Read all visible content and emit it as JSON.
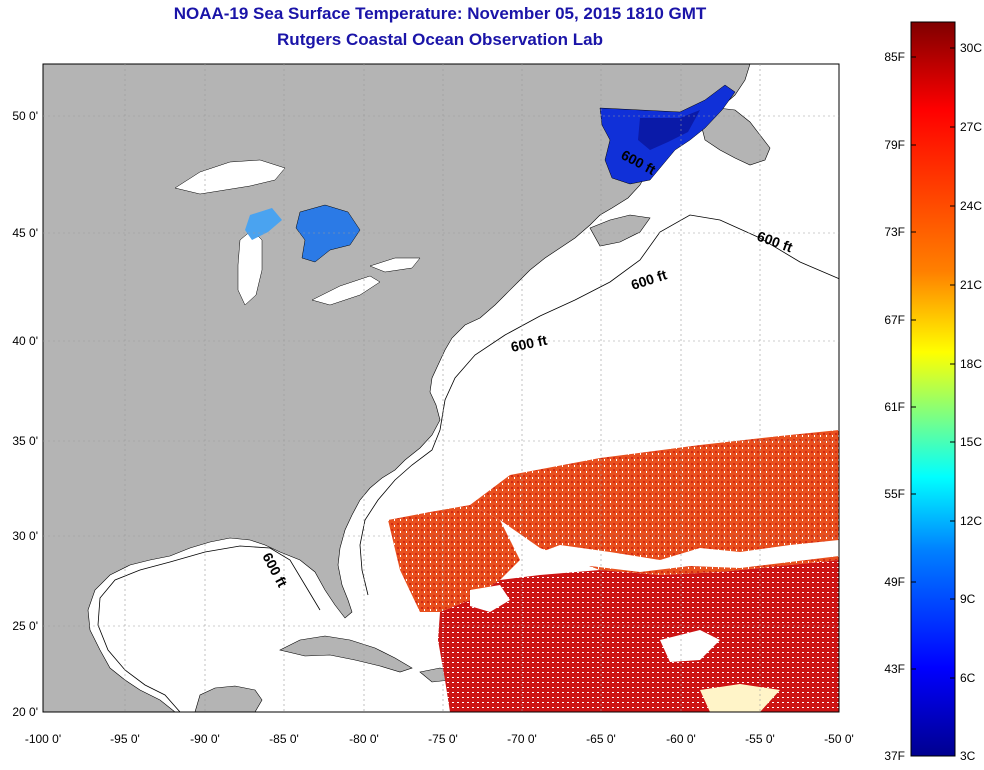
{
  "title": {
    "line1": "NOAA-19 Sea Surface Temperature:  November 05, 2015 1810 GMT",
    "line2": "Rutgers Coastal Ocean Observation Lab"
  },
  "map": {
    "longitude_labels": [
      "-100 0'",
      "-95 0'",
      "-90 0'",
      "-85 0'",
      "-80 0'",
      "-75 0'",
      "-70 0'",
      "-65 0'",
      "-60 0'",
      "-55 0'",
      "-50 0'"
    ],
    "latitude_labels": [
      "50 0'",
      "45 0'",
      "40 0'",
      "35 0'",
      "30 0'",
      "25 0'",
      "20 0'"
    ],
    "contour_labels": [
      "600 ft",
      "600 ft",
      "600 ft",
      "600 ft",
      "600 ft"
    ],
    "land_color": "#b4b4b4",
    "ocean_color": "#ffffff"
  },
  "colorbar": {
    "fahrenheit_labels": [
      "85F",
      "79F",
      "73F",
      "67F",
      "61F",
      "55F",
      "49F",
      "43F",
      "37F"
    ],
    "celsius_labels": [
      "30C",
      "27C",
      "24C",
      "21C",
      "18C",
      "15C",
      "12C",
      "9C",
      "6C",
      "3C"
    ],
    "colors": [
      "#7f0000",
      "#ff0000",
      "#ff8000",
      "#ffff00",
      "#00ffff",
      "#0080ff",
      "#0000ff",
      "#00008f"
    ]
  }
}
